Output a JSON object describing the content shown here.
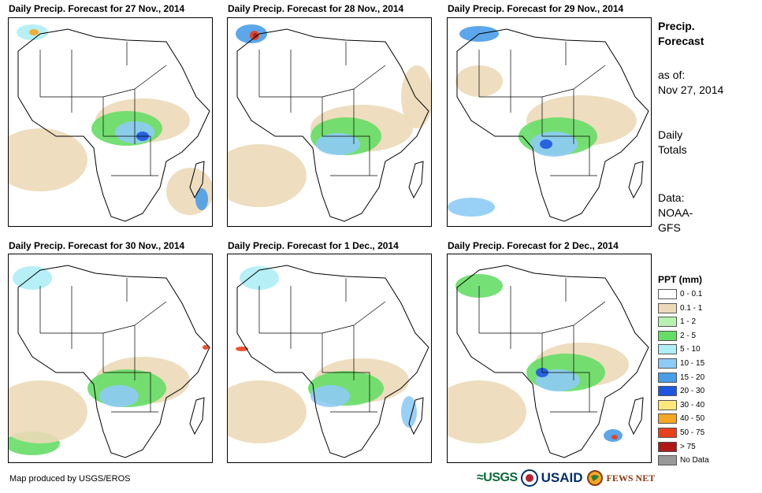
{
  "panels": [
    {
      "title": "Daily Precip. Forecast for 27 Nov., 2014"
    },
    {
      "title": "Daily Precip. Forecast for 28 Nov., 2014"
    },
    {
      "title": "Daily Precip. Forecast for 29 Nov., 2014"
    },
    {
      "title": "Daily Precip. Forecast for 30 Nov., 2014"
    },
    {
      "title": "Daily Precip. Forecast for 1 Dec., 2014"
    },
    {
      "title": "Daily Precip. Forecast for 2 Dec., 2014"
    }
  ],
  "info": {
    "heading_line1": "Precip.",
    "heading_line2": "Forecast",
    "asof_label": "as of:",
    "asof_date": "Nov 27, 2014",
    "totals_line1": "Daily",
    "totals_line2": "Totals",
    "data_label": "Data:",
    "data_line1": "NOAA-",
    "data_line2": "GFS"
  },
  "legend": {
    "title": "PPT (mm)",
    "items": [
      {
        "label": "0 - 0.1",
        "color": "#ffffff"
      },
      {
        "label": "0.1 - 1",
        "color": "#ecd9b8"
      },
      {
        "label": "1 - 2",
        "color": "#b8f2b0"
      },
      {
        "label": "2 - 5",
        "color": "#66dd66"
      },
      {
        "label": "5 - 10",
        "color": "#aeeef5"
      },
      {
        "label": "10 - 15",
        "color": "#8ecbf5"
      },
      {
        "label": "15 - 20",
        "color": "#4a9de8"
      },
      {
        "label": "20 - 30",
        "color": "#1e56e0"
      },
      {
        "label": "30 - 40",
        "color": "#ffe87a"
      },
      {
        "label": "40 - 50",
        "color": "#f5a623"
      },
      {
        "label": "50 - 75",
        "color": "#e8401a"
      },
      {
        "label": "> 75",
        "color": "#b01818"
      },
      {
        "label": "No Data",
        "color": "#999999"
      }
    ]
  },
  "footer": {
    "credit": "Map produced by USGS/EROS",
    "logos": {
      "usgs": "USGS",
      "usaid": "USAID",
      "fews": "FEWS NET"
    }
  }
}
